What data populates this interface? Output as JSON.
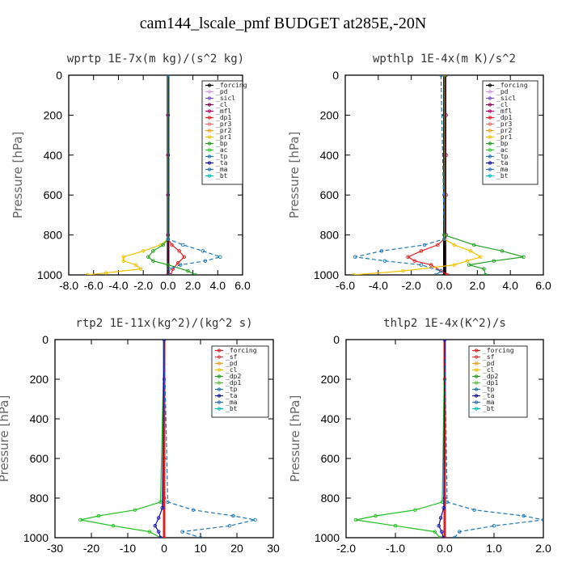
{
  "title": "cam144_lscale_pmf  BUDGET at285E,-20N",
  "chart_data": [
    {
      "type": "line",
      "title": "wprtp  1E-7x(m kg)/(s^2 kg)",
      "ylabel": "Pressure [hPa]",
      "ylim": [
        1000,
        0
      ],
      "xlim": [
        -8,
        6
      ],
      "xticks": [
        "-8.0",
        "-6.0",
        "-4.0",
        "-2.0",
        "0.0",
        "2.0",
        "4.0",
        "6.0"
      ],
      "yticks": [
        "0",
        "200",
        "400",
        "600",
        "800",
        "1000"
      ],
      "legend": [
        "_forcing",
        "_pd",
        "_sicl",
        "_cl",
        "_mfl",
        "_dp1",
        "_pr3",
        "_pr2",
        "_pr1",
        "_bp",
        "_ac",
        "_tp",
        "_ta",
        "_ma",
        "_bt"
      ],
      "legend_position": "top-right",
      "series": [
        {
          "name": "_forcing",
          "color": "#000000",
          "y": [
            0,
            200,
            400,
            600,
            800,
            1000
          ],
          "x": [
            0,
            0,
            0,
            0,
            0,
            0
          ]
        },
        {
          "name": "_mfl",
          "color": "#8b0050",
          "y": [
            0,
            200,
            400,
            600,
            800,
            1000
          ],
          "x": [
            0,
            0,
            0,
            0,
            0,
            0
          ]
        },
        {
          "name": "_dp1",
          "color": "#e02020",
          "y": [
            0,
            820,
            850,
            880,
            910,
            940,
            970,
            1000
          ],
          "x": [
            0,
            0,
            0.3,
            0.9,
            1.3,
            0.8,
            0.4,
            0.2
          ]
        },
        {
          "name": "_pr1",
          "color": "#f0c000",
          "y": [
            0,
            820,
            850,
            880,
            910,
            930,
            950,
            970,
            990,
            1000
          ],
          "x": [
            0,
            0,
            -0.6,
            -2.0,
            -3.6,
            -3.6,
            -2.6,
            -2.2,
            -5.0,
            -6.5
          ]
        },
        {
          "name": "_bp",
          "color": "#20a020",
          "y": [
            0,
            820,
            850,
            880,
            910,
            930,
            950,
            980,
            1000
          ],
          "x": [
            0,
            0,
            -0.4,
            -1.2,
            -1.6,
            -1.2,
            0.0,
            1.6,
            2.2
          ]
        },
        {
          "name": "_tp",
          "color": "#1f77b4",
          "y": [
            0,
            820,
            850,
            880,
            910,
            930,
            950,
            970,
            1000
          ],
          "x": [
            0,
            0,
            1.2,
            2.8,
            4.2,
            3.0,
            1.0,
            0.1,
            0.1
          ]
        }
      ]
    },
    {
      "type": "line",
      "title": "wpthlp  1E-4x(m K)/s^2",
      "ylabel": "Pressure [hPa]",
      "ylim": [
        1000,
        0
      ],
      "xlim": [
        -6,
        6
      ],
      "xticks": [
        "-6.0",
        "-4.0",
        "-2.0",
        "0.0",
        "2.0",
        "4.0",
        "6.0"
      ],
      "yticks": [
        "0",
        "200",
        "400",
        "600",
        "800",
        "1000"
      ],
      "legend": [
        "_forcing",
        "_pd",
        "_sicl",
        "_cl",
        "_mfl",
        "_dp1",
        "_pr3",
        "_pr2",
        "_pr1",
        "_bp",
        "_ac",
        "_tp",
        "_ta",
        "_ma",
        "_bt"
      ],
      "legend_position": "top-right",
      "series": [
        {
          "name": "_forcing",
          "color": "#000000",
          "y": [
            0,
            200,
            400,
            600,
            800,
            1000
          ],
          "x": [
            0,
            0,
            0,
            0,
            0,
            0
          ]
        },
        {
          "name": "_mfl",
          "color": "#8b0050",
          "y": [
            0,
            200,
            400,
            600,
            800,
            1000
          ],
          "x": [
            0.1,
            0.1,
            0.1,
            0.1,
            0.1,
            0.1
          ]
        },
        {
          "name": "_dp1",
          "color": "#e02020",
          "y": [
            0,
            820,
            850,
            880,
            910,
            930,
            950,
            980,
            1000
          ],
          "x": [
            0,
            0,
            -0.4,
            -1.4,
            -2.2,
            -1.8,
            -0.8,
            -0.2,
            0.2
          ]
        },
        {
          "name": "_pr1",
          "color": "#f0c000",
          "y": [
            0,
            820,
            850,
            880,
            910,
            930,
            950,
            980,
            1000
          ],
          "x": [
            0,
            0,
            0.6,
            1.6,
            2.2,
            1.4,
            0.6,
            -2.5,
            -5.5
          ]
        },
        {
          "name": "_bp",
          "color": "#20a020",
          "y": [
            0,
            800,
            850,
            880,
            910,
            930,
            950,
            970,
            1000
          ],
          "x": [
            0,
            0,
            1.8,
            3.5,
            4.8,
            3.0,
            1.5,
            2.4,
            2.5
          ]
        },
        {
          "name": "_tp",
          "color": "#1f77b4",
          "y": [
            0,
            820,
            850,
            880,
            910,
            930,
            950,
            980,
            1000
          ],
          "x": [
            -0.2,
            0,
            -1.2,
            -3.8,
            -5.4,
            -3.6,
            -1.4,
            -0.2,
            -0.5
          ]
        }
      ]
    },
    {
      "type": "line",
      "title": "rtp2  1E-11x(kg^2)/(kg^2 s)",
      "ylabel": "Pressure [hPa]",
      "ylim": [
        1000,
        0
      ],
      "xlim": [
        -30,
        30
      ],
      "xticks": [
        "-30",
        "-20",
        "-10",
        "0",
        "10",
        "20",
        "30"
      ],
      "yticks": [
        "0",
        "200",
        "400",
        "600",
        "800",
        "1000"
      ],
      "legend": [
        "_forcing",
        "_sf",
        "_pd",
        "_cl",
        "_dp2",
        "_dp1",
        "_tp",
        "_ta",
        "_ma",
        "_bt"
      ],
      "legend_position": "top-right",
      "series": [
        {
          "name": "_forcing",
          "color": "#e02020",
          "y": [
            0,
            200,
            400,
            600,
            800,
            1000
          ],
          "x": [
            0,
            0,
            0,
            0,
            0,
            0
          ]
        },
        {
          "name": "_dp1",
          "color": "#20c020",
          "y": [
            0,
            820,
            860,
            890,
            910,
            940,
            970,
            1000
          ],
          "x": [
            0,
            -1,
            -8,
            -18,
            -23,
            -14,
            -4,
            -1
          ]
        },
        {
          "name": "_tp",
          "color": "#1f77b4",
          "y": [
            0,
            820,
            860,
            890,
            910,
            940,
            970,
            1000
          ],
          "x": [
            0,
            1,
            8,
            19,
            25,
            18,
            5,
            10
          ]
        },
        {
          "name": "_ta",
          "color": "#1010a0",
          "y": [
            0,
            850,
            900,
            940,
            970,
            1000
          ],
          "x": [
            0,
            -0.5,
            -1.5,
            -2.5,
            -1.5,
            -1.0
          ]
        }
      ]
    },
    {
      "type": "line",
      "title": "thlp2  1E-4x(K^2)/s",
      "ylabel": "Pressure [hPa]",
      "ylim": [
        1000,
        0
      ],
      "xlim": [
        -2,
        2
      ],
      "xticks": [
        "-2.0",
        "-1.0",
        "0.0",
        "1.0",
        "2.0"
      ],
      "yticks": [
        "0",
        "200",
        "400",
        "600",
        "800",
        "1000"
      ],
      "legend": [
        "_forcing",
        "_sf",
        "_pd",
        "_cl",
        "_dp2",
        "_dp1",
        "_tp",
        "_ta",
        "_ma",
        "_bt"
      ],
      "legend_position": "top-right",
      "series": [
        {
          "name": "_forcing",
          "color": "#e02020",
          "y": [
            0,
            200,
            400,
            600,
            800,
            1000
          ],
          "x": [
            0,
            0,
            0,
            0,
            0,
            0
          ]
        },
        {
          "name": "_dp1",
          "color": "#20c020",
          "y": [
            0,
            820,
            860,
            890,
            910,
            940,
            970,
            1000
          ],
          "x": [
            0,
            -0.05,
            -0.6,
            -1.4,
            -1.8,
            -1.0,
            -0.2,
            -0.1
          ]
        },
        {
          "name": "_tp",
          "color": "#1f77b4",
          "y": [
            0,
            820,
            860,
            890,
            910,
            940,
            970,
            1000
          ],
          "x": [
            0,
            0.05,
            0.6,
            1.6,
            2.0,
            1.0,
            0.3,
            0.2
          ]
        },
        {
          "name": "_ta",
          "color": "#1010a0",
          "y": [
            0,
            850,
            900,
            940,
            970,
            1000
          ],
          "x": [
            0,
            -0.02,
            -0.08,
            -0.12,
            -0.06,
            -0.03
          ]
        }
      ]
    }
  ]
}
